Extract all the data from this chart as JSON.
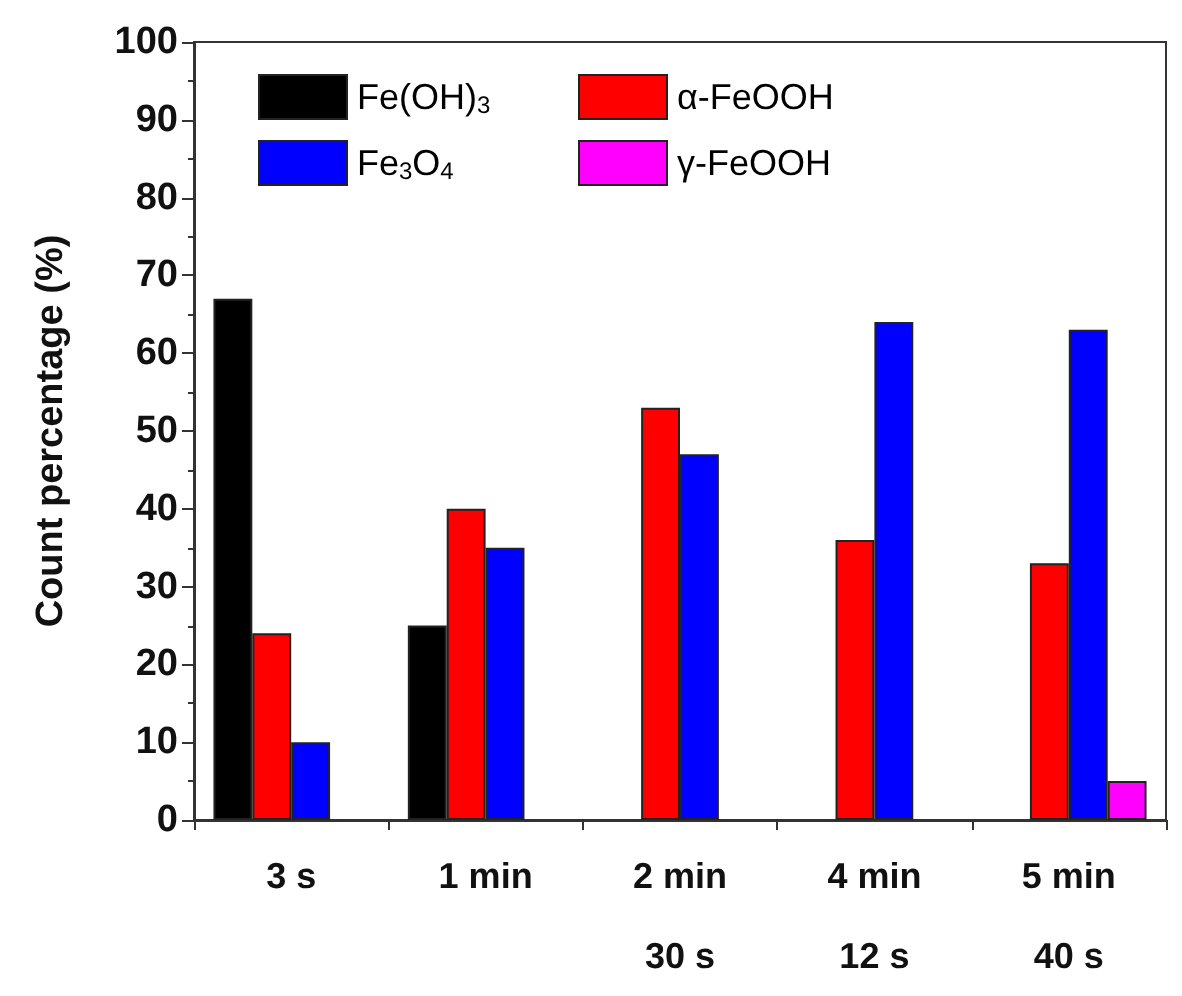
{
  "chart_data": {
    "type": "bar",
    "ylabel": "Count percentage (%)",
    "categories": [
      "3 s",
      "1 min",
      "2 min\n30 s",
      "4 min\n12 s",
      "5 min\n40 s"
    ],
    "series": [
      {
        "name": "Fe(OH)$_{3}$",
        "color": "#000000",
        "values": [
          67,
          25,
          null,
          null,
          null
        ]
      },
      {
        "name": "α-FeOOH",
        "color": "#ff0000",
        "values": [
          24,
          40,
          53,
          36,
          33
        ]
      },
      {
        "name": "Fe$_{3}$O$_{4}$",
        "color": "#0000ff",
        "values": [
          10,
          35,
          47,
          64,
          63
        ]
      },
      {
        "name": "γ-FeOOH",
        "color": "#ff00ff",
        "values": [
          null,
          null,
          null,
          null,
          5
        ]
      }
    ],
    "ylim": [
      0,
      100
    ],
    "yticks": [
      0,
      10,
      20,
      30,
      40,
      50,
      60,
      70,
      80,
      90,
      100
    ],
    "grid": false,
    "legend": "top left"
  }
}
